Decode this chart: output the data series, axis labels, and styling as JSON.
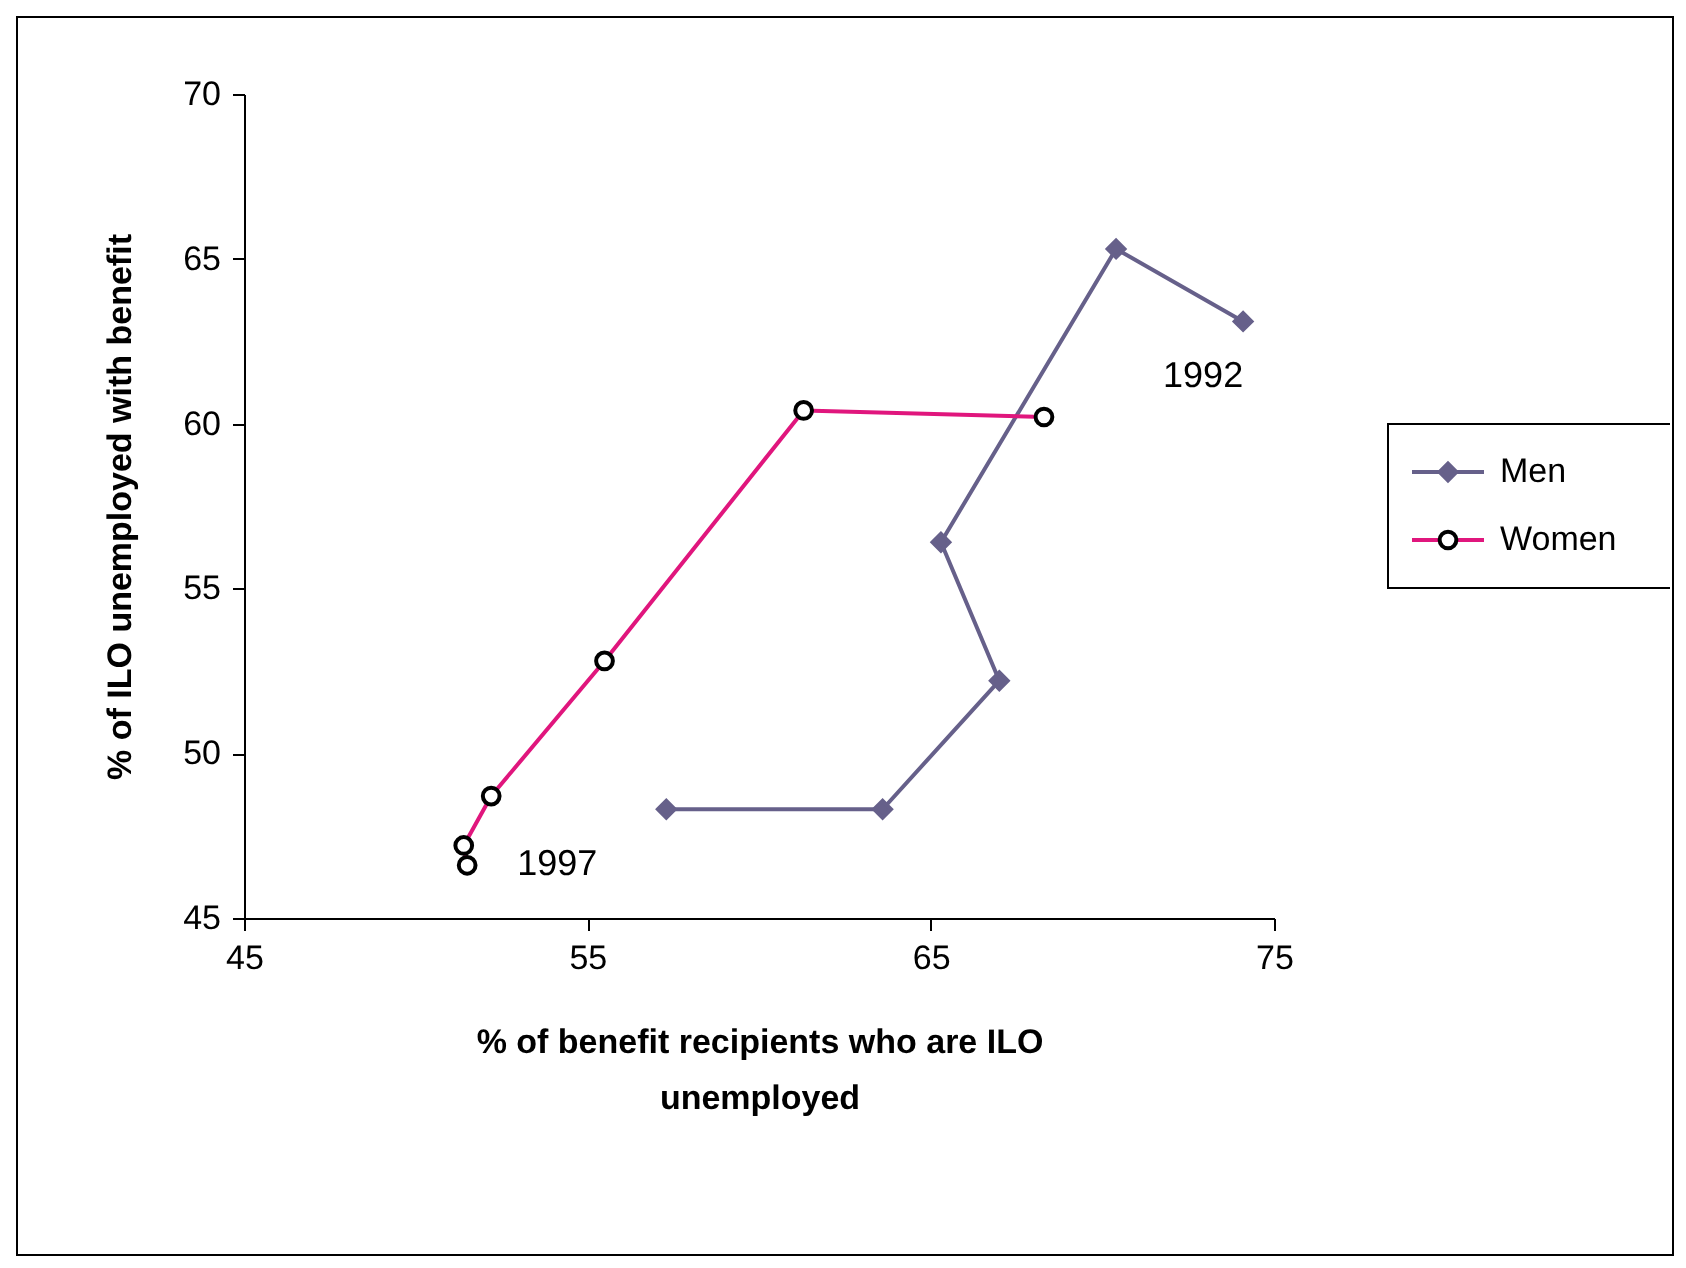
{
  "chart_data": {
    "type": "line",
    "xlabel": "% of benefit recipients who are ILO unemployed",
    "ylabel": "% of ILO unemployed with benefit",
    "series": [
      {
        "name": "Men",
        "color": "#66608a",
        "marker": "diamond",
        "x": [
          74.1,
          70.4,
          65.3,
          67.0,
          63.6,
          57.3
        ],
        "values": [
          63.1,
          65.3,
          56.4,
          52.2,
          48.3,
          48.3
        ]
      },
      {
        "name": "Women",
        "color": "#e0167d",
        "marker": "circle",
        "x": [
          68.3,
          61.3,
          55.5,
          52.2,
          51.4,
          51.5
        ],
        "values": [
          60.2,
          60.4,
          52.8,
          48.7,
          47.2,
          46.6
        ]
      }
    ],
    "annotations": [
      {
        "text": "1992",
        "x": 74.1,
        "y": 63.1
      },
      {
        "text": "1997",
        "x": 51.5,
        "y": 46.6
      }
    ],
    "xlim": [
      45,
      75
    ],
    "xticks": [
      45,
      55,
      65,
      75
    ],
    "ylim": [
      45,
      70
    ],
    "yticks": [
      45,
      50,
      55,
      60,
      65,
      70
    ],
    "grid": false,
    "legend": "right"
  }
}
